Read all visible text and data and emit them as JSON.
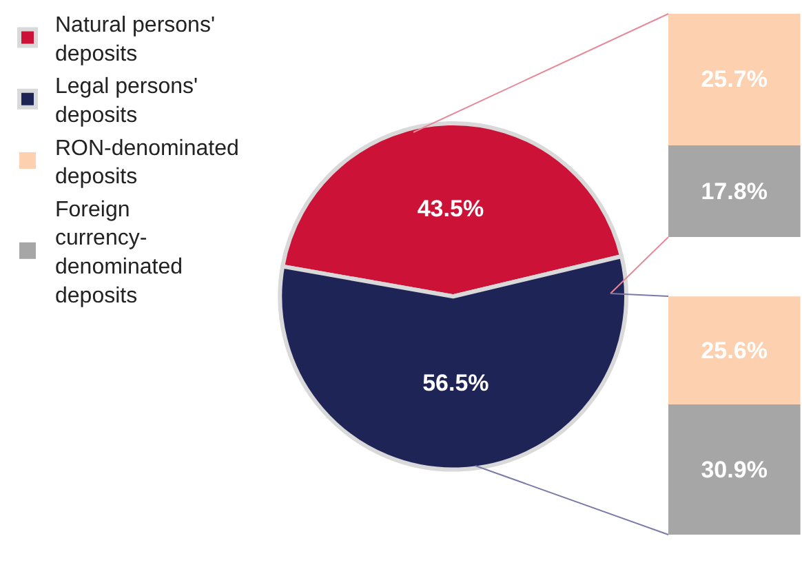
{
  "chart_data": [
    {
      "type": "pie",
      "categories": [
        "Natural persons' deposits",
        "Legal persons' deposits"
      ],
      "values": [
        43.5,
        56.5
      ],
      "colors": [
        "#cc1236",
        "#1f2456"
      ],
      "value_labels": [
        "43.5%",
        "56.5%"
      ],
      "legend": "left"
    },
    {
      "type": "bar",
      "stacked": true,
      "tick_labels": false,
      "categories": [
        null
      ],
      "legend": "left",
      "series": [
        {
          "name": "Foreign currency-denominated deposits",
          "color": "#a6a6a6",
          "values": [
            17.8
          ],
          "value_labels": [
            "17.8%"
          ]
        },
        {
          "name": "RON-denominated deposits",
          "color": "#fdd0b0",
          "values": [
            25.7
          ],
          "value_labels": [
            "25.7%"
          ]
        }
      ]
    },
    {
      "type": "bar",
      "stacked": true,
      "tick_labels": false,
      "categories": [
        null
      ],
      "series": [
        {
          "color": "#a6a6a6",
          "values": [
            30.9
          ],
          "value_labels": [
            "30.9%"
          ]
        },
        {
          "color": "#fdd0b0",
          "values": [
            25.6
          ],
          "value_labels": [
            "25.6%"
          ]
        }
      ]
    }
  ]
}
